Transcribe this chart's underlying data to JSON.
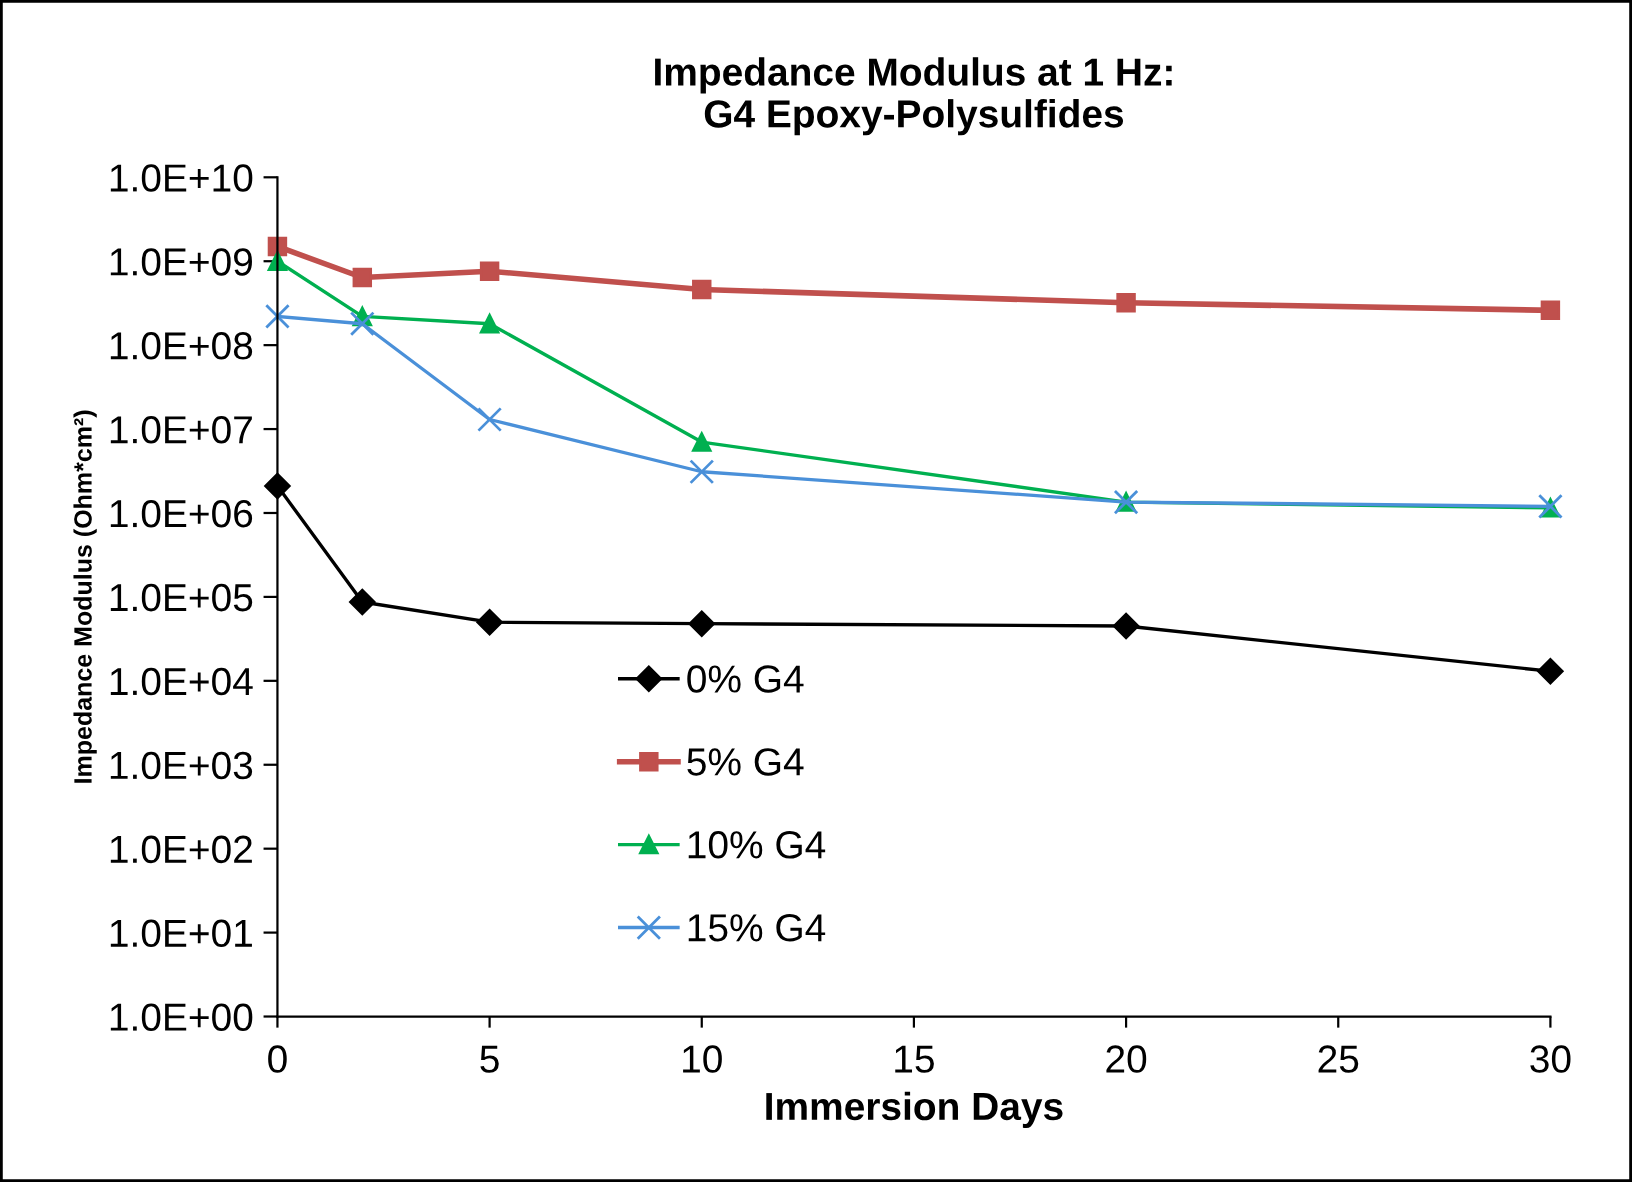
{
  "chart_data": {
    "type": "line",
    "title": "Impedance Modulus at 1 Hz:\nG4 Epoxy-Polysulfides",
    "xlabel": "Immersion Days",
    "ylabel": "Impedance Modulus (Ohm*cm²)",
    "x": [
      0,
      2,
      5,
      10,
      20,
      30
    ],
    "series": [
      {
        "name": "0% G4",
        "color": "#000000",
        "marker": "diamond",
        "values": [
          2100000.0,
          87000.0,
          50000.0,
          48000.0,
          45000.0,
          13000.0
        ]
      },
      {
        "name": "5% G4",
        "color": "#c0504d",
        "marker": "square",
        "values": [
          1500000000.0,
          640000000.0,
          760000000.0,
          460000000.0,
          320000000.0,
          260000000.0
        ]
      },
      {
        "name": "10% G4",
        "color": "#00b050",
        "marker": "triangle",
        "values": [
          1000000000.0,
          220000000.0,
          180000000.0,
          7000000.0,
          1350000.0,
          1150000.0
        ]
      },
      {
        "name": "15% G4",
        "color": "#4a90d9",
        "marker": "cross",
        "values": [
          220000000.0,
          180000000.0,
          13000000.0,
          3100000.0,
          1350000.0,
          1200000.0
        ]
      }
    ],
    "log": "y",
    "ylim": [
      1,
      10000000000.0
    ],
    "yticks": [
      {
        "value": 1,
        "label": "1.0E+00"
      },
      {
        "value": 10,
        "label": "1.0E+01"
      },
      {
        "value": 100,
        "label": "1.0E+02"
      },
      {
        "value": 1000,
        "label": "1.0E+03"
      },
      {
        "value": 10000,
        "label": "1.0E+04"
      },
      {
        "value": 100000,
        "label": "1.0E+05"
      },
      {
        "value": 1000000,
        "label": "1.0E+06"
      },
      {
        "value": 10000000,
        "label": "1.0E+07"
      },
      {
        "value": 100000000,
        "label": "1.0E+08"
      },
      {
        "value": 1000000000,
        "label": "1.0E+09"
      },
      {
        "value": 10000000000,
        "label": "1.0E+10"
      }
    ],
    "xlim": [
      0,
      30
    ],
    "xticks": [
      0,
      5,
      10,
      15,
      20,
      25,
      30
    ],
    "grid": false,
    "legend": "center",
    "line_style": "solid"
  }
}
